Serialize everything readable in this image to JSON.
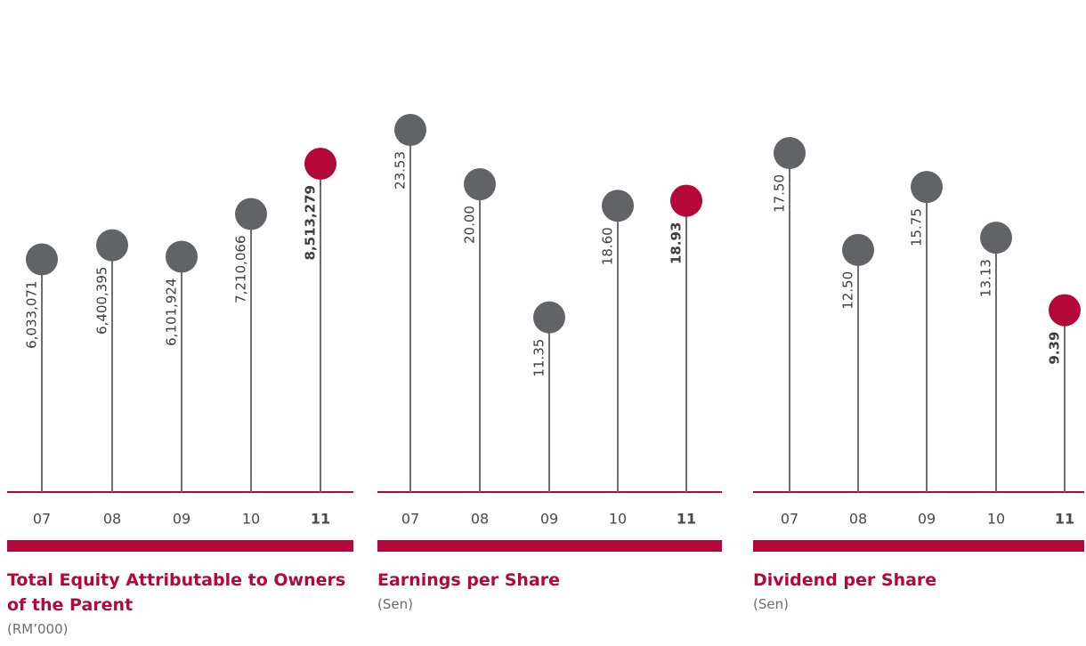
{
  "chart_data": [
    {
      "type": "lollipop",
      "title": "Total Equity Attributable to Owners of the Parent",
      "subtitle": "(RM’000)",
      "categories": [
        "07",
        "08",
        "09",
        "10",
        "11"
      ],
      "values": [
        6033071,
        6400395,
        6101924,
        7210066,
        8513279
      ],
      "value_labels": [
        "6,033,071",
        "6,400,395",
        "6,101,924",
        "7,210,066",
        "8,513,279"
      ],
      "colors": [
        "#626366",
        "#626366",
        "#626366",
        "#626366",
        "#b5083a"
      ]
    },
    {
      "type": "lollipop",
      "title": "Earnings per Share",
      "subtitle": "(Sen)",
      "categories": [
        "07",
        "08",
        "09",
        "10",
        "11"
      ],
      "values": [
        23.53,
        20.0,
        11.35,
        18.6,
        18.93
      ],
      "value_labels": [
        "23.53",
        "20.00",
        "11.35",
        "18.60",
        "18.93"
      ],
      "colors": [
        "#626366",
        "#626366",
        "#626366",
        "#626366",
        "#b5083a"
      ]
    },
    {
      "type": "lollipop",
      "title": "Dividend per Share",
      "subtitle": "(Sen)",
      "categories": [
        "07",
        "08",
        "09",
        "10",
        "11"
      ],
      "values": [
        17.5,
        12.5,
        15.75,
        13.13,
        9.39
      ],
      "value_labels": [
        "17.50",
        "12.50",
        "15.75",
        "13.13",
        "9.39"
      ],
      "colors": [
        "#626366",
        "#626366",
        "#626366",
        "#626366",
        "#b5083a"
      ]
    }
  ]
}
